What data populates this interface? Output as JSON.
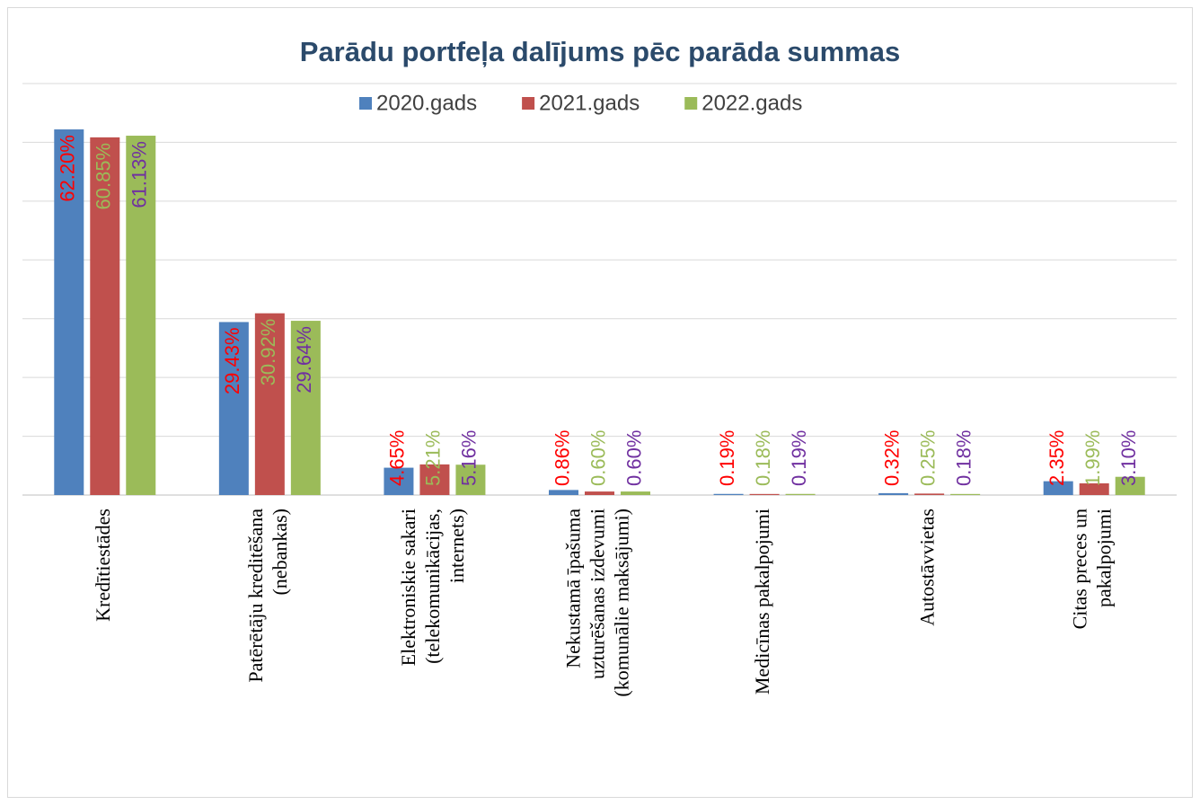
{
  "chart_data": {
    "type": "bar",
    "title": "Parādu portfeļa dalījums pēc parāda summas",
    "categories": [
      "Kredītiestādes",
      "Patērētāju kreditēšana\n(nebankas)",
      "Elektroniskie sakari\n(telekomunikācijas,\ninternets)",
      "Nekustamā īpašuma\nuzturēšanas izdevumi\n(komunālie maksājumi)",
      "Medicīnas pakalpojumi",
      "Autostāvvietas",
      "Citas preces un\npakalpojumi"
    ],
    "series": [
      {
        "name": "2020.gads",
        "color": "#4f81bd",
        "label_color": "#ff0000",
        "values": [
          62.2,
          29.43,
          4.65,
          0.86,
          0.19,
          0.32,
          2.35
        ],
        "value_labels": [
          "62.20%",
          "29.43%",
          "4.65%",
          "0.86%",
          "0.19%",
          "0.32%",
          "2.35%"
        ]
      },
      {
        "name": "2021.gads",
        "color": "#c0504d",
        "label_color": "#9bbb59",
        "values": [
          60.85,
          30.92,
          5.21,
          0.6,
          0.18,
          0.25,
          1.99
        ],
        "value_labels": [
          "60.85%",
          "30.92%",
          "5.21%",
          "0.60%",
          "0.18%",
          "0.25%",
          "1.99%"
        ]
      },
      {
        "name": "2022.gads",
        "color": "#9bbb59",
        "label_color": "#7030a0",
        "values": [
          61.13,
          29.64,
          5.16,
          0.6,
          0.19,
          0.18,
          3.1
        ],
        "value_labels": [
          "61.13%",
          "29.64%",
          "5.16%",
          "0.60%",
          "0.19%",
          "0.18%",
          "3.10%"
        ]
      }
    ],
    "ylim": [
      0,
      70
    ],
    "yticks": [
      0,
      10,
      20,
      30,
      40,
      50,
      60,
      70
    ],
    "grid": true,
    "legend": "top"
  }
}
